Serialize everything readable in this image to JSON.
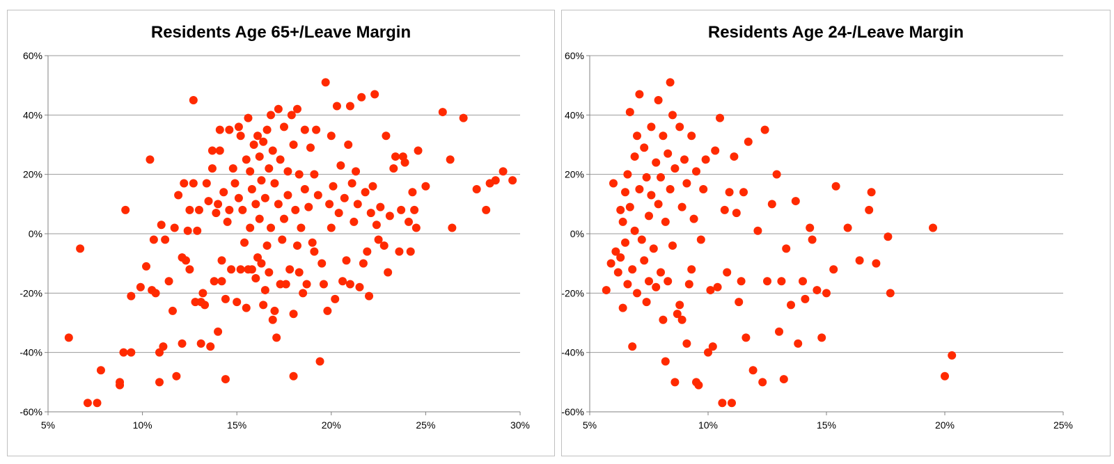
{
  "chart_data": [
    {
      "type": "scatter",
      "title": "Residents Age 65+/Leave Margin",
      "xlabel": "",
      "ylabel": "",
      "xlim": [
        5,
        30
      ],
      "ylim": [
        -60,
        60
      ],
      "x_ticks": [
        "5%",
        "10%",
        "15%",
        "20%",
        "25%",
        "30%"
      ],
      "y_ticks": [
        "60%",
        "40%",
        "20%",
        "0%",
        "-20%",
        "-40%",
        "-60%"
      ],
      "grid": "horizontal",
      "legend": "none",
      "marker_color": "#ff2a00",
      "points": [
        [
          6.1,
          -35
        ],
        [
          6.7,
          -5
        ],
        [
          7.1,
          -57
        ],
        [
          7.6,
          -57
        ],
        [
          7.8,
          -46
        ],
        [
          8.8,
          -50
        ],
        [
          8.8,
          -51
        ],
        [
          9.0,
          -40
        ],
        [
          9.1,
          8
        ],
        [
          9.4,
          -40
        ],
        [
          9.4,
          -21
        ],
        [
          9.9,
          -18
        ],
        [
          10.2,
          -11
        ],
        [
          10.4,
          25
        ],
        [
          10.5,
          -19
        ],
        [
          10.6,
          -2
        ],
        [
          10.7,
          -20
        ],
        [
          10.9,
          -50
        ],
        [
          10.9,
          -40
        ],
        [
          11.0,
          3
        ],
        [
          11.1,
          -38
        ],
        [
          11.2,
          -2
        ],
        [
          11.4,
          -16
        ],
        [
          11.6,
          -26
        ],
        [
          11.7,
          2
        ],
        [
          11.8,
          -48
        ],
        [
          11.9,
          13
        ],
        [
          12.1,
          -8
        ],
        [
          12.1,
          -37
        ],
        [
          12.2,
          17
        ],
        [
          12.3,
          -9
        ],
        [
          12.4,
          1
        ],
        [
          12.5,
          -12
        ],
        [
          12.5,
          8
        ],
        [
          12.7,
          45
        ],
        [
          12.7,
          17
        ],
        [
          12.8,
          -23
        ],
        [
          12.9,
          1
        ],
        [
          13.0,
          8
        ],
        [
          13.1,
          -37
        ],
        [
          13.1,
          -23
        ],
        [
          13.2,
          -20
        ],
        [
          13.3,
          -24
        ],
        [
          13.4,
          17
        ],
        [
          13.5,
          11
        ],
        [
          13.6,
          -38
        ],
        [
          13.7,
          22
        ],
        [
          13.7,
          28
        ],
        [
          13.8,
          -16
        ],
        [
          13.9,
          7
        ],
        [
          14.0,
          10
        ],
        [
          14.0,
          -33
        ],
        [
          14.1,
          35
        ],
        [
          14.1,
          28
        ],
        [
          14.2,
          -16
        ],
        [
          14.2,
          -9
        ],
        [
          14.3,
          14
        ],
        [
          14.4,
          -49
        ],
        [
          14.4,
          -22
        ],
        [
          14.5,
          4
        ],
        [
          14.6,
          35
        ],
        [
          14.6,
          8
        ],
        [
          14.7,
          -12
        ],
        [
          14.8,
          22
        ],
        [
          14.9,
          17
        ],
        [
          15.0,
          -23
        ],
        [
          15.1,
          12
        ],
        [
          15.1,
          36
        ],
        [
          15.2,
          33
        ],
        [
          15.2,
          -12
        ],
        [
          15.3,
          8
        ],
        [
          15.4,
          -3
        ],
        [
          15.5,
          -25
        ],
        [
          15.5,
          25
        ],
        [
          15.6,
          39
        ],
        [
          15.6,
          -12
        ],
        [
          15.7,
          21
        ],
        [
          15.7,
          2
        ],
        [
          15.8,
          -12
        ],
        [
          15.8,
          15
        ],
        [
          15.9,
          30
        ],
        [
          16.0,
          -15
        ],
        [
          16.0,
          10
        ],
        [
          16.1,
          33
        ],
        [
          16.1,
          -8
        ],
        [
          16.2,
          26
        ],
        [
          16.2,
          5
        ],
        [
          16.3,
          18
        ],
        [
          16.3,
          -10
        ],
        [
          16.4,
          31
        ],
        [
          16.4,
          -24
        ],
        [
          16.5,
          12
        ],
        [
          16.5,
          -19
        ],
        [
          16.6,
          35
        ],
        [
          16.6,
          -4
        ],
        [
          16.7,
          22
        ],
        [
          16.7,
          -13
        ],
        [
          16.8,
          40
        ],
        [
          16.8,
          2
        ],
        [
          16.9,
          -29
        ],
        [
          16.9,
          28
        ],
        [
          17.0,
          -26
        ],
        [
          17.0,
          17
        ],
        [
          17.1,
          -35
        ],
        [
          17.2,
          42
        ],
        [
          17.2,
          10
        ],
        [
          17.3,
          -17
        ],
        [
          17.3,
          25
        ],
        [
          17.4,
          -2
        ],
        [
          17.5,
          36
        ],
        [
          17.5,
          5
        ],
        [
          17.6,
          -17
        ],
        [
          17.7,
          21
        ],
        [
          17.7,
          13
        ],
        [
          17.8,
          -12
        ],
        [
          17.9,
          40
        ],
        [
          18.0,
          -48
        ],
        [
          18.0,
          -27
        ],
        [
          18.0,
          30
        ],
        [
          18.1,
          8
        ],
        [
          18.2,
          42
        ],
        [
          18.2,
          -4
        ],
        [
          18.3,
          20
        ],
        [
          18.3,
          -13
        ],
        [
          18.4,
          2
        ],
        [
          18.5,
          -20
        ],
        [
          18.6,
          35
        ],
        [
          18.6,
          15
        ],
        [
          18.7,
          -17
        ],
        [
          18.8,
          9
        ],
        [
          18.9,
          29
        ],
        [
          19.0,
          -3
        ],
        [
          19.1,
          20
        ],
        [
          19.1,
          -6
        ],
        [
          19.2,
          35
        ],
        [
          19.3,
          13
        ],
        [
          19.4,
          -43
        ],
        [
          19.5,
          -10
        ],
        [
          19.6,
          -17
        ],
        [
          19.7,
          51
        ],
        [
          19.8,
          -26
        ],
        [
          19.9,
          10
        ],
        [
          20.0,
          33
        ],
        [
          20.0,
          2
        ],
        [
          20.1,
          16
        ],
        [
          20.2,
          -22
        ],
        [
          20.3,
          43
        ],
        [
          20.4,
          7
        ],
        [
          20.5,
          23
        ],
        [
          20.6,
          -16
        ],
        [
          20.7,
          12
        ],
        [
          20.8,
          -9
        ],
        [
          20.9,
          30
        ],
        [
          21.0,
          43
        ],
        [
          21.0,
          -17
        ],
        [
          21.1,
          17
        ],
        [
          21.2,
          4
        ],
        [
          21.3,
          21
        ],
        [
          21.4,
          10
        ],
        [
          21.5,
          -18
        ],
        [
          21.6,
          46
        ],
        [
          21.7,
          -10
        ],
        [
          21.8,
          14
        ],
        [
          21.9,
          -6
        ],
        [
          22.0,
          -21
        ],
        [
          22.1,
          7
        ],
        [
          22.2,
          16
        ],
        [
          22.3,
          47
        ],
        [
          22.4,
          3
        ],
        [
          22.5,
          -2
        ],
        [
          22.6,
          9
        ],
        [
          22.8,
          -4
        ],
        [
          22.9,
          33
        ],
        [
          23.0,
          -13
        ],
        [
          23.1,
          6
        ],
        [
          23.3,
          22
        ],
        [
          23.4,
          26
        ],
        [
          23.6,
          -6
        ],
        [
          23.7,
          8
        ],
        [
          23.8,
          26
        ],
        [
          23.9,
          24
        ],
        [
          24.1,
          4
        ],
        [
          24.2,
          -6
        ],
        [
          24.3,
          14
        ],
        [
          24.4,
          8
        ],
        [
          24.5,
          2
        ],
        [
          24.6,
          28
        ],
        [
          25.0,
          16
        ],
        [
          25.9,
          41
        ],
        [
          26.3,
          25
        ],
        [
          26.4,
          2
        ],
        [
          27.0,
          39
        ],
        [
          27.7,
          15
        ],
        [
          28.2,
          8
        ],
        [
          28.4,
          17
        ],
        [
          28.7,
          18
        ],
        [
          29.1,
          21
        ],
        [
          29.6,
          18
        ]
      ]
    },
    {
      "type": "scatter",
      "title": "Residents Age 24-/Leave Margin",
      "xlabel": "",
      "ylabel": "",
      "xlim": [
        5,
        25
      ],
      "ylim": [
        -60,
        60
      ],
      "x_ticks": [
        "5%",
        "10%",
        "15%",
        "20%",
        "25%"
      ],
      "y_ticks": [
        "60%",
        "40%",
        "20%",
        "0%",
        "-20%",
        "-40%",
        "-60%"
      ],
      "grid": "horizontal",
      "legend": "none",
      "marker_color": "#ff2a00",
      "points": [
        [
          5.7,
          -19
        ],
        [
          5.9,
          -10
        ],
        [
          6.0,
          17
        ],
        [
          6.1,
          -6
        ],
        [
          6.2,
          -13
        ],
        [
          6.3,
          8
        ],
        [
          6.3,
          -8
        ],
        [
          6.4,
          4
        ],
        [
          6.4,
          -25
        ],
        [
          6.5,
          14
        ],
        [
          6.5,
          -3
        ],
        [
          6.6,
          20
        ],
        [
          6.6,
          -17
        ],
        [
          6.7,
          41
        ],
        [
          6.7,
          9
        ],
        [
          6.8,
          -38
        ],
        [
          6.8,
          -12
        ],
        [
          6.9,
          26
        ],
        [
          6.9,
          1
        ],
        [
          7.0,
          33
        ],
        [
          7.0,
          -20
        ],
        [
          7.1,
          15
        ],
        [
          7.1,
          47
        ],
        [
          7.2,
          -2
        ],
        [
          7.3,
          29
        ],
        [
          7.3,
          -9
        ],
        [
          7.4,
          19
        ],
        [
          7.4,
          -23
        ],
        [
          7.5,
          6
        ],
        [
          7.5,
          -16
        ],
        [
          7.6,
          36
        ],
        [
          7.6,
          13
        ],
        [
          7.7,
          -5
        ],
        [
          7.8,
          24
        ],
        [
          7.8,
          -18
        ],
        [
          7.9,
          45
        ],
        [
          7.9,
          10
        ],
        [
          8.0,
          -13
        ],
        [
          8.0,
          19
        ],
        [
          8.1,
          -29
        ],
        [
          8.1,
          33
        ],
        [
          8.2,
          4
        ],
        [
          8.2,
          -43
        ],
        [
          8.3,
          27
        ],
        [
          8.3,
          -16
        ],
        [
          8.4,
          51
        ],
        [
          8.4,
          15
        ],
        [
          8.5,
          -4
        ],
        [
          8.5,
          40
        ],
        [
          8.6,
          -50
        ],
        [
          8.6,
          22
        ],
        [
          8.7,
          -27
        ],
        [
          8.8,
          36
        ],
        [
          8.8,
          -24
        ],
        [
          8.9,
          9
        ],
        [
          8.9,
          -29
        ],
        [
          9.0,
          25
        ],
        [
          9.1,
          -37
        ],
        [
          9.1,
          17
        ],
        [
          9.2,
          -17
        ],
        [
          9.3,
          33
        ],
        [
          9.3,
          -12
        ],
        [
          9.4,
          5
        ],
        [
          9.5,
          -50
        ],
        [
          9.5,
          21
        ],
        [
          9.6,
          -51
        ],
        [
          9.7,
          -2
        ],
        [
          9.8,
          15
        ],
        [
          9.9,
          25
        ],
        [
          10.0,
          -40
        ],
        [
          10.1,
          -19
        ],
        [
          10.2,
          -38
        ],
        [
          10.3,
          28
        ],
        [
          10.4,
          -18
        ],
        [
          10.5,
          39
        ],
        [
          10.6,
          -57
        ],
        [
          10.7,
          8
        ],
        [
          10.8,
          -13
        ],
        [
          10.9,
          14
        ],
        [
          11.0,
          -57
        ],
        [
          11.1,
          26
        ],
        [
          11.2,
          7
        ],
        [
          11.3,
          -23
        ],
        [
          11.4,
          -16
        ],
        [
          11.5,
          14
        ],
        [
          11.6,
          -35
        ],
        [
          11.7,
          31
        ],
        [
          11.9,
          -46
        ],
        [
          12.1,
          1
        ],
        [
          12.3,
          -50
        ],
        [
          12.4,
          35
        ],
        [
          12.5,
          -16
        ],
        [
          12.7,
          10
        ],
        [
          12.9,
          20
        ],
        [
          13.0,
          -33
        ],
        [
          13.1,
          -16
        ],
        [
          13.2,
          -49
        ],
        [
          13.3,
          -5
        ],
        [
          13.5,
          -24
        ],
        [
          13.7,
          11
        ],
        [
          13.8,
          -37
        ],
        [
          14.0,
          -16
        ],
        [
          14.1,
          -22
        ],
        [
          14.3,
          2
        ],
        [
          14.4,
          -2
        ],
        [
          14.6,
          -19
        ],
        [
          14.8,
          -35
        ],
        [
          15.0,
          -20
        ],
        [
          15.3,
          -12
        ],
        [
          15.4,
          16
        ],
        [
          15.9,
          2
        ],
        [
          16.4,
          -9
        ],
        [
          16.8,
          8
        ],
        [
          16.9,
          14
        ],
        [
          17.1,
          -10
        ],
        [
          17.6,
          -1
        ],
        [
          17.7,
          -20
        ],
        [
          19.5,
          2
        ],
        [
          20.0,
          -48
        ],
        [
          20.3,
          -41
        ]
      ]
    }
  ]
}
